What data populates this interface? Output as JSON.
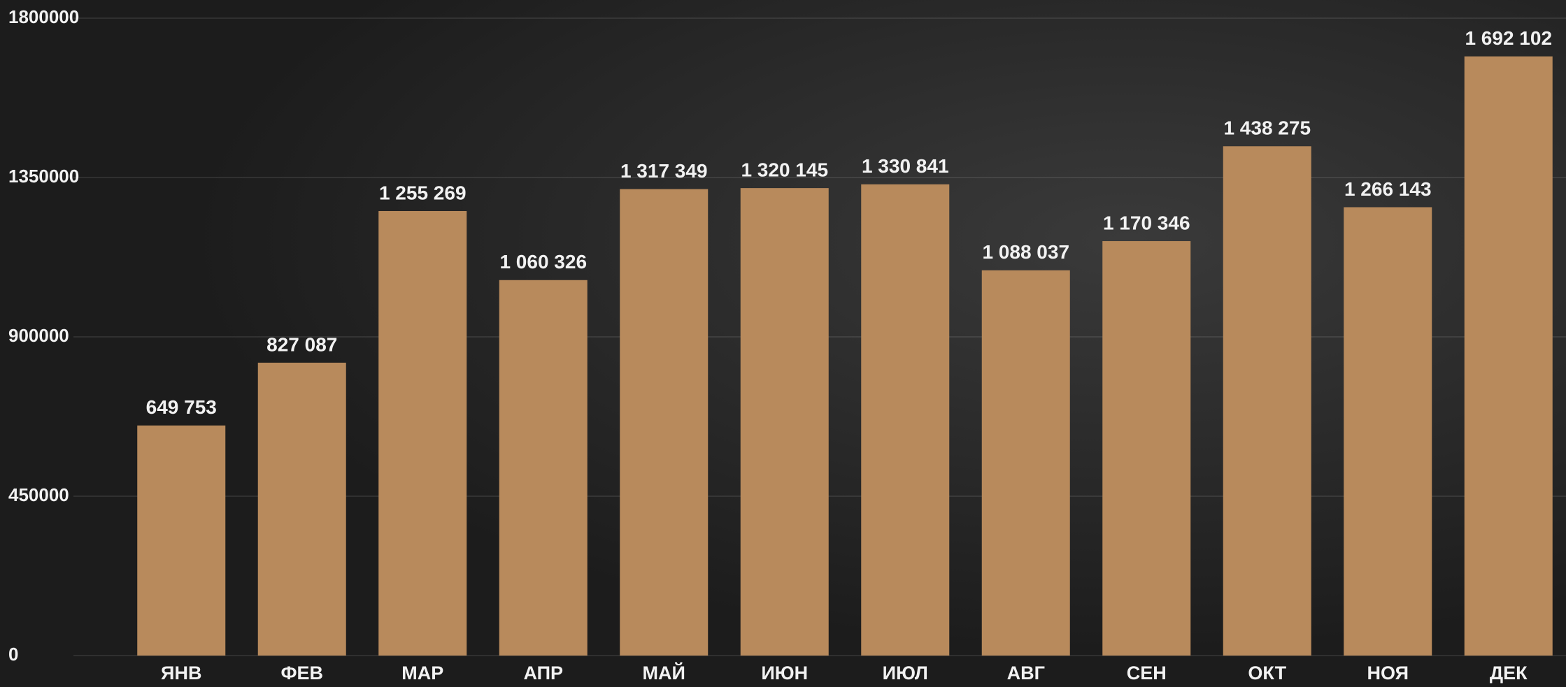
{
  "chart_data": {
    "type": "bar",
    "categories": [
      "ЯНВ",
      "ФЕВ",
      "МАР",
      "АПР",
      "МАЙ",
      "ИЮН",
      "ИЮЛ",
      "АВГ",
      "СЕН",
      "ОКТ",
      "НОЯ",
      "ДЕК"
    ],
    "values": [
      649753,
      827087,
      1255269,
      1060326,
      1317349,
      1320145,
      1330841,
      1088037,
      1170346,
      1438275,
      1266143,
      1692102
    ],
    "value_labels": [
      "649 753",
      "827 087",
      "1 255 269",
      "1 060 326",
      "1 317 349",
      "1 320 145",
      "1 330 841",
      "1 088 037",
      "1 170 346",
      "1 438 275",
      "1 266 143",
      "1 692 102"
    ],
    "color": "#b88a5c",
    "ylim": [
      0,
      1800000
    ],
    "yticks": [
      0,
      450000,
      900000,
      1350000,
      1800000
    ],
    "grid": true
  }
}
